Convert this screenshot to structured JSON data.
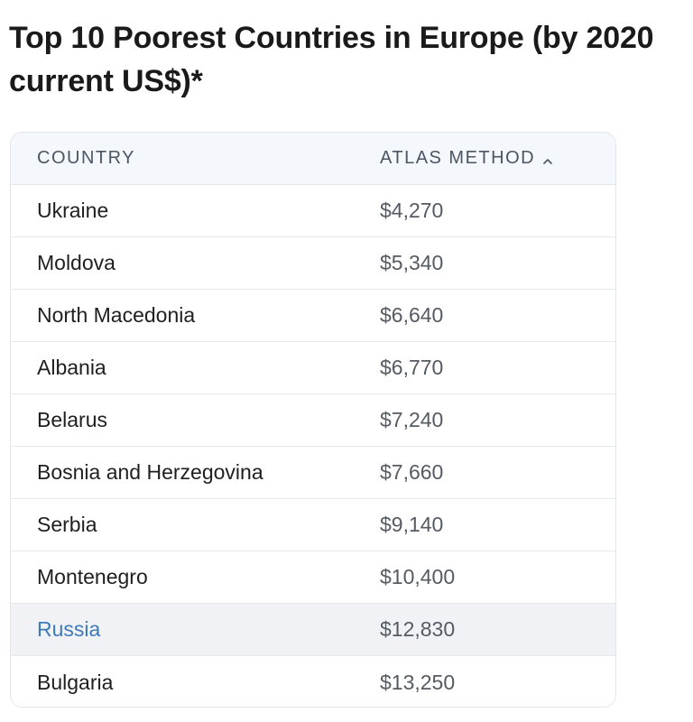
{
  "title": "Top 10 Poorest Countries in Europe (by 2020 current US$)*",
  "table": {
    "headers": {
      "country": "COUNTRY",
      "atlas": "ATLAS METHOD"
    },
    "sort_icon": "chevron-up-icon",
    "rows": [
      {
        "country": "Ukraine",
        "value": "$4,270"
      },
      {
        "country": "Moldova",
        "value": "$5,340"
      },
      {
        "country": "North Macedonia",
        "value": "$6,640"
      },
      {
        "country": "Albania",
        "value": "$6,770"
      },
      {
        "country": "Belarus",
        "value": "$7,240"
      },
      {
        "country": "Bosnia and Herzegovina",
        "value": "$7,660"
      },
      {
        "country": "Serbia",
        "value": "$9,140"
      },
      {
        "country": "Montenegro",
        "value": "$10,400"
      },
      {
        "country": "Russia",
        "value": "$12,830"
      },
      {
        "country": "Bulgaria",
        "value": "$13,250"
      }
    ],
    "highlighted_row": "Russia",
    "colors": {
      "link": "#3d7ab8",
      "header_bg": "#f4f7fb",
      "highlight_bg": "#f1f2f6"
    }
  }
}
